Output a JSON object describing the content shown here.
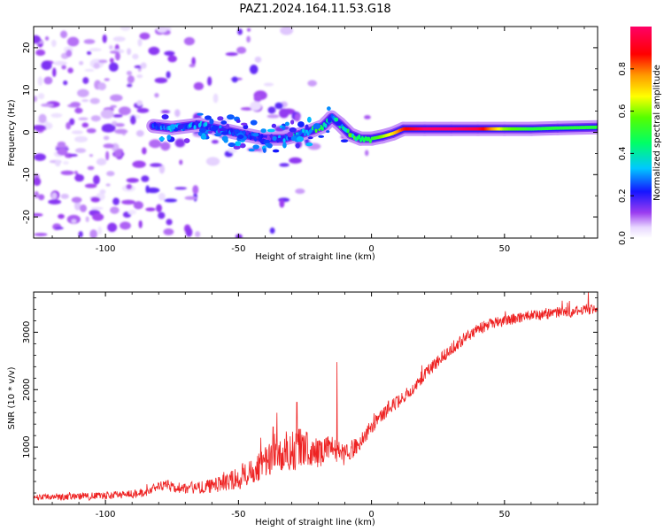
{
  "title": "PAZ1.2024.164.11.53.G18",
  "chart_data": [
    {
      "type": "heatmap",
      "xlabel": "Height of straight line (km)",
      "ylabel": "Frequency (Hz)",
      "xlim": [
        -127,
        85
      ],
      "ylim": [
        -25,
        25
      ],
      "xticks": [
        -100,
        -50,
        0,
        50
      ],
      "yticks": [
        -20,
        -10,
        0,
        10,
        20
      ],
      "colorbar": {
        "label": "Normalized spectral amplitude",
        "range": [
          0,
          1
        ],
        "ticks": [
          0.0,
          0.2,
          0.4,
          0.6,
          0.8
        ],
        "colormap": "gist_rainbow_r (magenta=high, red, yellow, green, cyan, blue, purple=low, white=0)"
      },
      "ridge": {
        "x": [
          -82,
          -75,
          -65,
          -55,
          -48,
          -40,
          -33,
          -27,
          -22,
          -18,
          -15,
          -12,
          -8,
          -4,
          0,
          4,
          8,
          12,
          20,
          30,
          40,
          50,
          60,
          70,
          85
        ],
        "y": [
          1.5,
          1.0,
          1.8,
          0.5,
          -0.5,
          -1.5,
          -1.5,
          -0.5,
          0.5,
          1.5,
          3.5,
          2.0,
          -0.5,
          -1.5,
          -1.5,
          -1.0,
          -0.3,
          0.8,
          0.8,
          0.8,
          0.8,
          0.8,
          0.8,
          1.0,
          1.2
        ],
        "amplitude": [
          0.2,
          0.25,
          0.25,
          0.2,
          0.2,
          0.15,
          0.25,
          0.35,
          0.35,
          0.4,
          0.3,
          0.35,
          0.4,
          0.45,
          0.5,
          0.6,
          0.7,
          0.85,
          1.0,
          1.0,
          0.95,
          0.6,
          0.5,
          0.5,
          0.5
        ]
      }
    },
    {
      "type": "line",
      "xlabel": "Height of straight line (km)",
      "ylabel": "SNR (10 * v/v)",
      "xlim": [
        -127,
        85
      ],
      "ylim": [
        0,
        3700
      ],
      "xticks": [
        -100,
        -50,
        0,
        50
      ],
      "yticks": [
        1000,
        2000,
        3000
      ],
      "series_color": "#ee2222",
      "trend": {
        "x": [
          -127,
          -100,
          -85,
          -80,
          -70,
          -60,
          -50,
          -45,
          -40,
          -35,
          -30,
          -25,
          -20,
          -15,
          -10,
          -5,
          0,
          5,
          10,
          15,
          20,
          25,
          30,
          35,
          40,
          45,
          50,
          55,
          60,
          65,
          70,
          75,
          80,
          85
        ],
        "y": [
          120,
          150,
          200,
          330,
          280,
          320,
          450,
          600,
          750,
          850,
          950,
          1000,
          900,
          1000,
          850,
          1050,
          1350,
          1600,
          1800,
          2000,
          2250,
          2500,
          2700,
          2900,
          3050,
          3150,
          3200,
          3250,
          3300,
          3300,
          3350,
          3350,
          3400,
          3400
        ]
      },
      "noise": {
        "x": [
          -127,
          -80,
          -60,
          -50,
          -40,
          -30,
          -20,
          -10,
          0,
          20,
          40,
          60,
          85
        ],
        "amplitude": [
          50,
          80,
          120,
          200,
          300,
          380,
          260,
          180,
          130,
          110,
          100,
          90,
          90
        ]
      },
      "spikes": [
        {
          "x": -13.0,
          "y": 2480
        },
        {
          "x": -37.0,
          "y": 1350
        },
        {
          "x": -28.0,
          "y": 1780
        },
        {
          "x": -76.5,
          "y": 420
        },
        {
          "x": 81.5,
          "y": 3700
        }
      ]
    }
  ]
}
